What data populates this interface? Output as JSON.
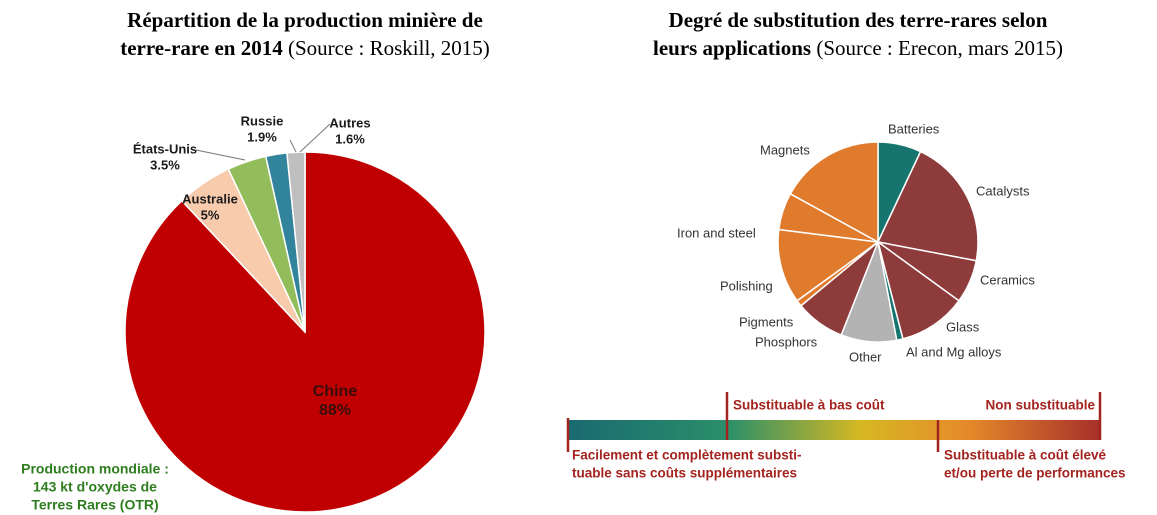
{
  "chart_data": [
    {
      "type": "pie",
      "title_lines": [
        "Répartition de la production minière de",
        "terre-rare en 2014"
      ],
      "source": "(Source : Roskill, 2015)",
      "categories": [
        "Chine",
        "Australie",
        "États-Unis",
        "Russie",
        "Autres"
      ],
      "values": [
        88,
        5,
        3.5,
        1.9,
        1.6
      ],
      "value_labels": [
        "88%",
        "5%",
        "3.5%",
        "1.9%",
        "1.6%"
      ],
      "colors": [
        "#c00000",
        "#f8cbad",
        "#92bd5a",
        "#31849b",
        "#bfbfbf"
      ],
      "annotation_lines": [
        "Production mondiale :",
        "143 kt d'oxydes de",
        "Terres Rares (OTR)"
      ]
    },
    {
      "type": "pie",
      "title_lines": [
        "Degré de substitution des terre-rares selon",
        "leurs applications"
      ],
      "source": "(Source : Erecon, mars 2015)",
      "categories": [
        "Batteries",
        "Catalysts",
        "Ceramics",
        "Glass",
        "Al and Mg alloys",
        "Other",
        "Phosphors",
        "Pigments",
        "Polishing",
        "Iron and steel",
        "Magnets"
      ],
      "values": [
        7,
        21,
        7,
        11,
        1,
        9,
        8,
        1,
        12,
        6,
        17
      ],
      "colors": [
        "#17756f",
        "#8e3b3b",
        "#8e3b3b",
        "#8e3b3b",
        "#17756f",
        "#b3b3b3",
        "#8e3b3b",
        "#e07b2e",
        "#e07b2e",
        "#e07b2e",
        "#e07b2e"
      ],
      "scale_labels": [
        "Substituable à bas coût",
        "Non substituable"
      ],
      "scale_labels_below": [
        [
          "Facilement et complètement substi-",
          "tuable sans coûts supplémentaires"
        ],
        [
          "Substituable à coût élevé",
          "et/ou perte de performances"
        ]
      ]
    }
  ]
}
